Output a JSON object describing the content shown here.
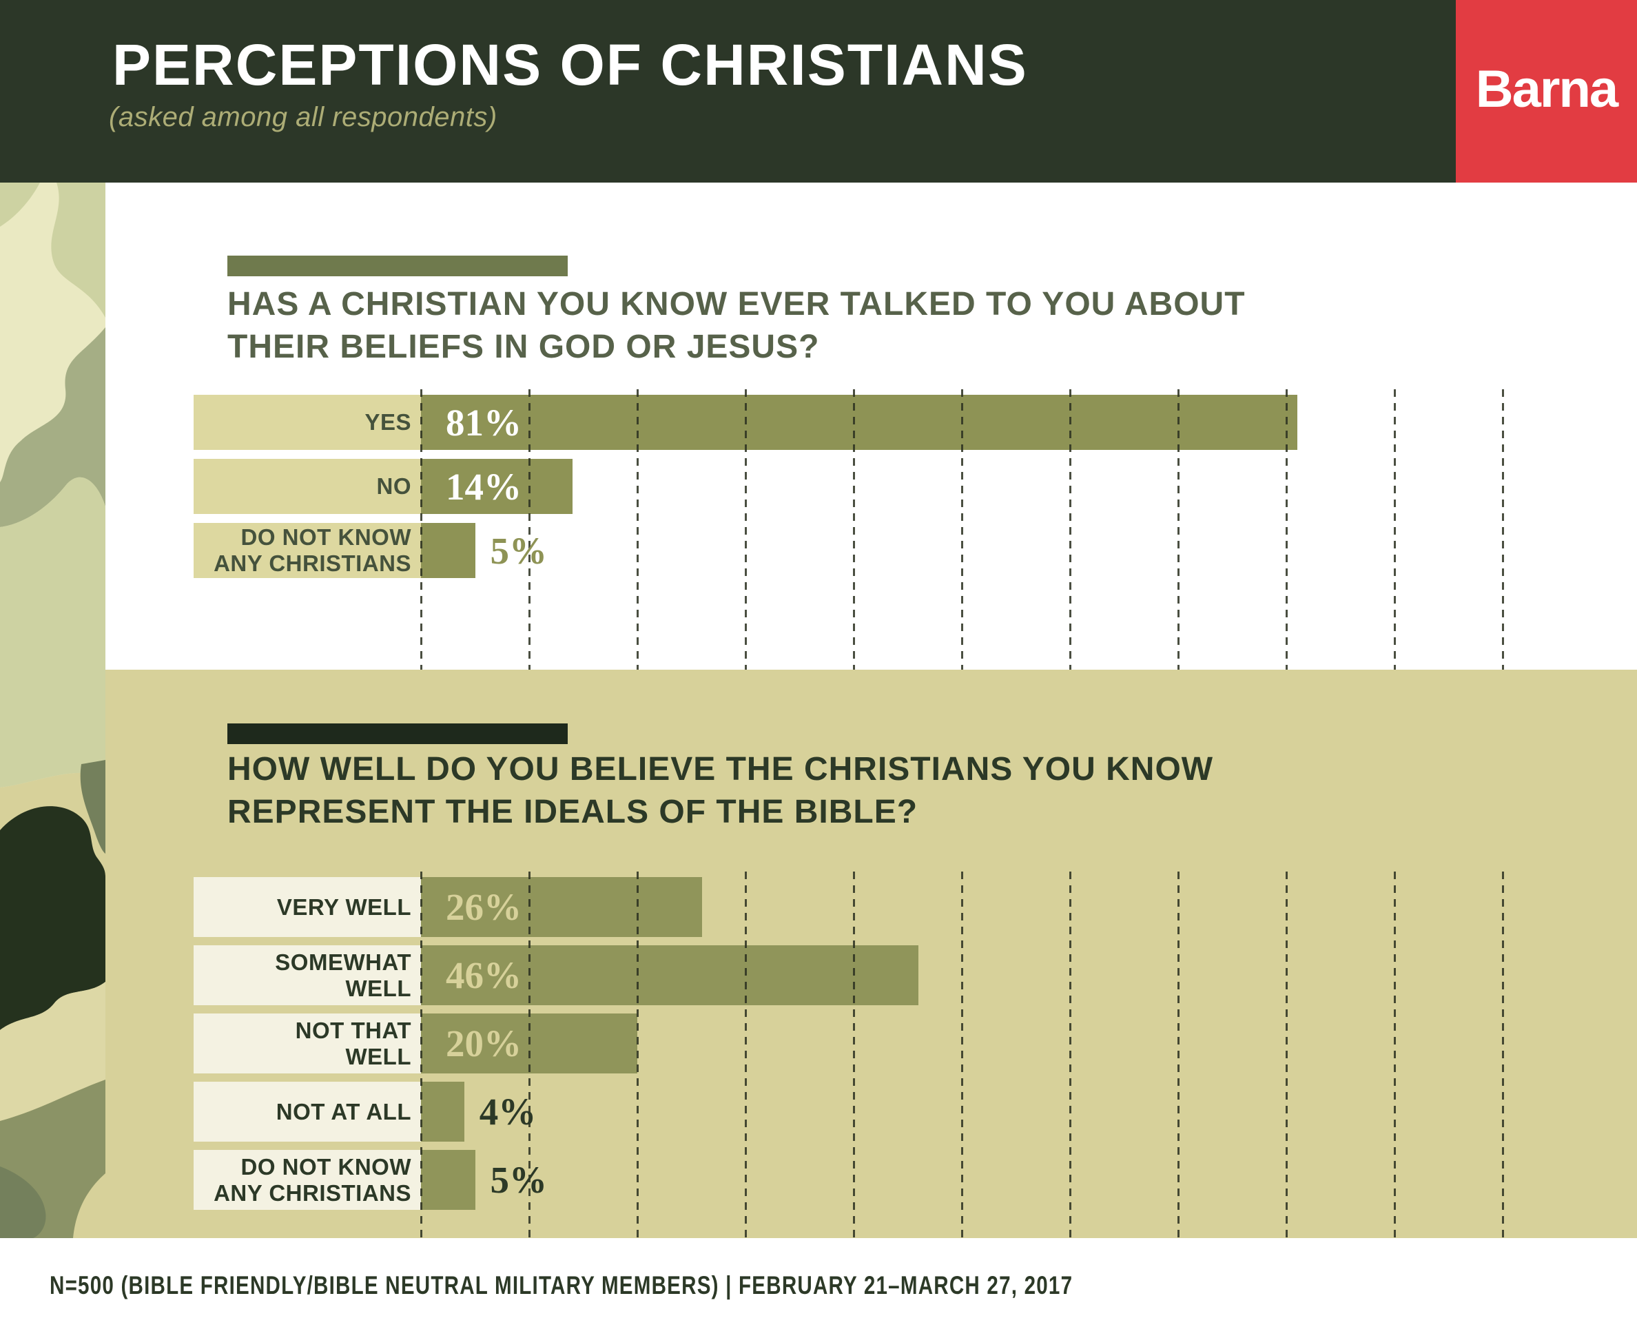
{
  "header": {
    "title": "PERCEPTIONS OF CHRISTIANS",
    "subtitle": "(asked among all respondents)",
    "logo_text": "Barna",
    "colors": {
      "background": "#2c3728",
      "title_text": "#ffffff",
      "subtitle_text": "#adad76",
      "logo_background": "#e23c42",
      "logo_text": "#ffffff"
    }
  },
  "sidebar": {
    "pattern": "camouflage",
    "camo_colors": [
      "#eae9c2",
      "#cdd2a2",
      "#a5ae85",
      "#d7d19a",
      "#74805c",
      "#25321e",
      "#ddd8a6",
      "#8b9366"
    ]
  },
  "chart_data": [
    {
      "type": "bar",
      "orientation": "horizontal",
      "title": "HAS A CHRISTIAN YOU KNOW EVER TALKED TO YOU ABOUT THEIR BELIEFS IN GOD OR JESUS?",
      "title_lines": [
        "HAS A CHRISTIAN YOU KNOW EVER TALKED TO YOU ABOUT",
        "THEIR BELIEFS IN GOD OR JESUS?"
      ],
      "categories": [
        "YES",
        "NO",
        "DO NOT KNOW\nANY CHRISTIANS"
      ],
      "values": [
        81,
        14,
        5
      ],
      "value_labels": [
        "81%",
        "14%",
        "5%"
      ],
      "xlim": [
        0,
        100
      ],
      "gridline_step": 10,
      "grid": "vertical-dashed",
      "legend": "none",
      "colors": {
        "bar": "#8e9355",
        "category_box": "#ddd8a0",
        "category_text": "#45523c",
        "value_inside": "#ffffff",
        "value_outside": "#8e9355",
        "heading_text": "#57624a",
        "accent_bar": "#6f7a4d",
        "gridline": "rgba(43,48,32,0.85)",
        "background": "#ffffff"
      }
    },
    {
      "type": "bar",
      "orientation": "horizontal",
      "title": "HOW WELL DO YOU BELIEVE THE CHRISTIANS YOU KNOW REPRESENT THE IDEALS OF THE BIBLE?",
      "title_lines": [
        "HOW WELL DO YOU BELIEVE THE CHRISTIANS YOU KNOW",
        "REPRESENT THE IDEALS OF THE BIBLE?"
      ],
      "categories": [
        "VERY WELL",
        "SOMEWHAT\nWELL",
        "NOT THAT\nWELL",
        "NOT AT ALL",
        "DO NOT KNOW\nANY CHRISTIANS"
      ],
      "values": [
        26,
        46,
        20,
        4,
        5
      ],
      "value_labels": [
        "26%",
        "46%",
        "20%",
        "4%",
        "5%"
      ],
      "xlim": [
        0,
        100
      ],
      "gridline_step": 10,
      "grid": "vertical-dashed",
      "legend": "none",
      "colors": {
        "bar": "#90955a",
        "category_box": "#f4f2e2",
        "category_text": "#2c3927",
        "value_inside": "#d7d19a",
        "value_outside": "#2c3927",
        "heading_text": "#2c3927",
        "accent_bar": "#1e291c",
        "gridline": "rgba(43,48,32,0.85)",
        "background": "#d7d19a"
      }
    }
  ],
  "footer": {
    "text": "N=500 (BIBLE FRIENDLY/BIBLE NEUTRAL MILITARY MEMBERS) | FEBRUARY 21–MARCH 27, 2017"
  }
}
